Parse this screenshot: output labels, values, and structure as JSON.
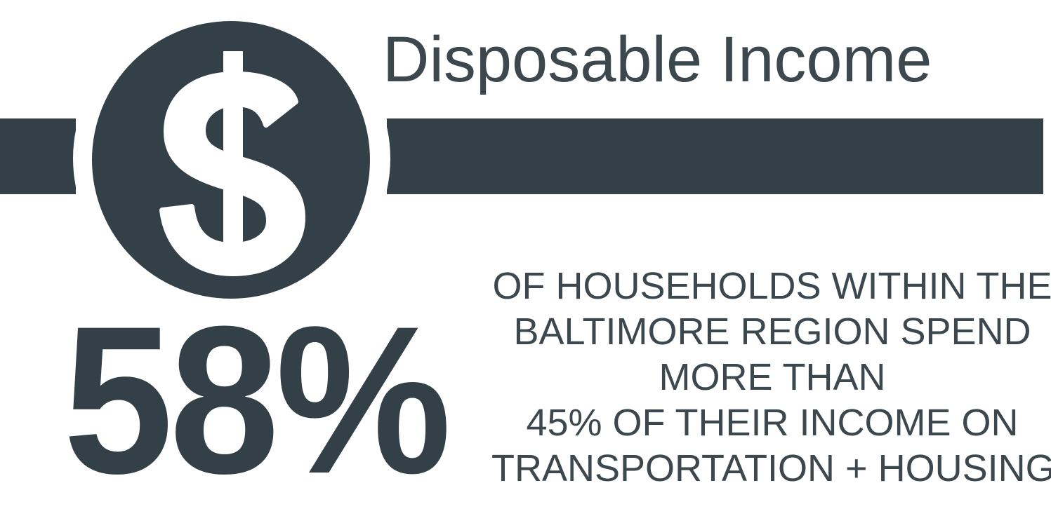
{
  "header": {
    "title": "Disposable Income",
    "icon": "dollar-sign-icon"
  },
  "stat": {
    "value": "58%",
    "description_lines": [
      "OF HOUSEHOLDS WITHIN THE",
      "BALTIMORE REGION SPEND",
      "MORE THAN",
      "45% OF THEIR INCOME ON",
      "TRANSPORTATION + HOUSING"
    ]
  },
  "colors": {
    "primary": "#334048",
    "text": "#3d474e",
    "background": "#ffffff"
  }
}
